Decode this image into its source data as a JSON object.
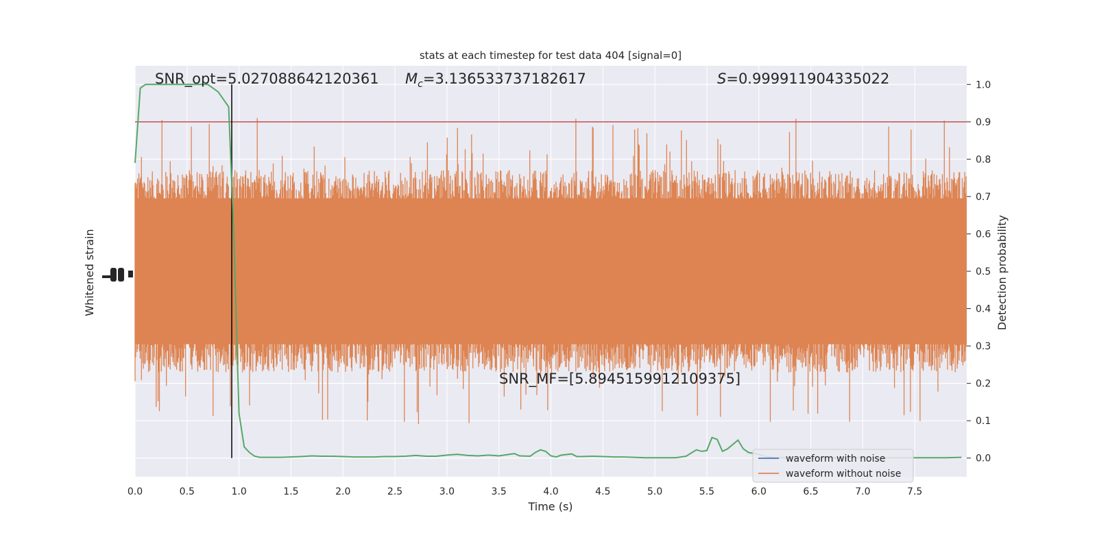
{
  "chart_data": {
    "type": "line",
    "title": "stats at each timestep for test data 404 [signal=0]",
    "xlabel": "Time (s)",
    "ylabel_left": "Whitened strain",
    "ylabel_right": "Detection probability",
    "xlim": [
      0.0,
      8.0
    ],
    "ylim_right": [
      -0.05,
      1.05
    ],
    "x_ticks": [
      "0.0",
      "0.5",
      "1.0",
      "1.5",
      "2.0",
      "2.5",
      "3.0",
      "3.5",
      "4.0",
      "4.5",
      "5.0",
      "5.5",
      "6.0",
      "6.5",
      "7.0",
      "7.5"
    ],
    "y_right_ticks": [
      "0.0",
      "0.1",
      "0.2",
      "0.3",
      "0.4",
      "0.5",
      "0.6",
      "0.7",
      "0.8",
      "0.9",
      "1.0"
    ],
    "grid": true,
    "legend_position": "lower-right",
    "annotations": {
      "snr_opt": "SNR_opt=5.027088642120361",
      "mc_value": "=3.136533737182617",
      "s_value": "=0.999911904335022",
      "snr_mf": "SNR_MF=[5.8945159912109375]"
    },
    "threshold": 0.9,
    "detection_time": 0.93,
    "series": [
      {
        "name": "waveform with noise",
        "color": "#4c72b0"
      },
      {
        "name": "waveform without noise",
        "color": "#dd8452",
        "noise_band": [
          0.06,
          0.94
        ]
      },
      {
        "color": "#55a868",
        "x": [
          0.0,
          0.05,
          0.1,
          0.15,
          0.2,
          0.3,
          0.4,
          0.5,
          0.6,
          0.7,
          0.75,
          0.8,
          0.85,
          0.9,
          0.95,
          1.0,
          1.05,
          1.1,
          1.15,
          1.2,
          1.3,
          1.4,
          1.5,
          1.6,
          1.7,
          1.8,
          1.9,
          2.0,
          2.1,
          2.2,
          2.3,
          2.4,
          2.5,
          2.6,
          2.7,
          2.8,
          2.9,
          3.0,
          3.1,
          3.2,
          3.3,
          3.4,
          3.5,
          3.6,
          3.65,
          3.7,
          3.8,
          3.85,
          3.9,
          3.95,
          4.0,
          4.05,
          4.1,
          4.2,
          4.25,
          4.3,
          4.4,
          4.5,
          4.6,
          4.7,
          4.8,
          4.9,
          5.0,
          5.1,
          5.2,
          5.3,
          5.4,
          5.45,
          5.5,
          5.55,
          5.6,
          5.65,
          5.7,
          5.8,
          5.85,
          5.9,
          6.0,
          6.05,
          6.1,
          6.2,
          6.3,
          6.4,
          6.5,
          6.6,
          6.7,
          6.8,
          6.9,
          7.0,
          7.1,
          7.2,
          7.3,
          7.4,
          7.5,
          7.6,
          7.7,
          7.8,
          7.95
        ],
        "values": [
          0.79,
          0.99,
          1.0,
          1.0,
          1.0,
          1.0,
          1.0,
          1.0,
          1.0,
          1.0,
          0.99,
          0.98,
          0.96,
          0.94,
          0.6,
          0.12,
          0.03,
          0.015,
          0.005,
          0.002,
          0.002,
          0.002,
          0.003,
          0.004,
          0.006,
          0.005,
          0.005,
          0.004,
          0.003,
          0.003,
          0.003,
          0.004,
          0.004,
          0.005,
          0.007,
          0.005,
          0.005,
          0.008,
          0.01,
          0.007,
          0.006,
          0.008,
          0.006,
          0.01,
          0.012,
          0.006,
          0.005,
          0.015,
          0.022,
          0.018,
          0.006,
          0.003,
          0.008,
          0.011,
          0.004,
          0.004,
          0.005,
          0.004,
          0.003,
          0.003,
          0.002,
          0.001,
          0.001,
          0.001,
          0.001,
          0.005,
          0.022,
          0.018,
          0.02,
          0.055,
          0.05,
          0.018,
          0.025,
          0.048,
          0.025,
          0.015,
          0.01,
          0.005,
          0.003,
          0.001,
          0.001,
          0.001,
          0.001,
          0.001,
          0.001,
          0.001,
          0.001,
          0.001,
          0.001,
          0.001,
          0.001,
          0.001,
          0.001,
          0.001,
          0.001,
          0.001,
          0.002
        ]
      }
    ]
  }
}
